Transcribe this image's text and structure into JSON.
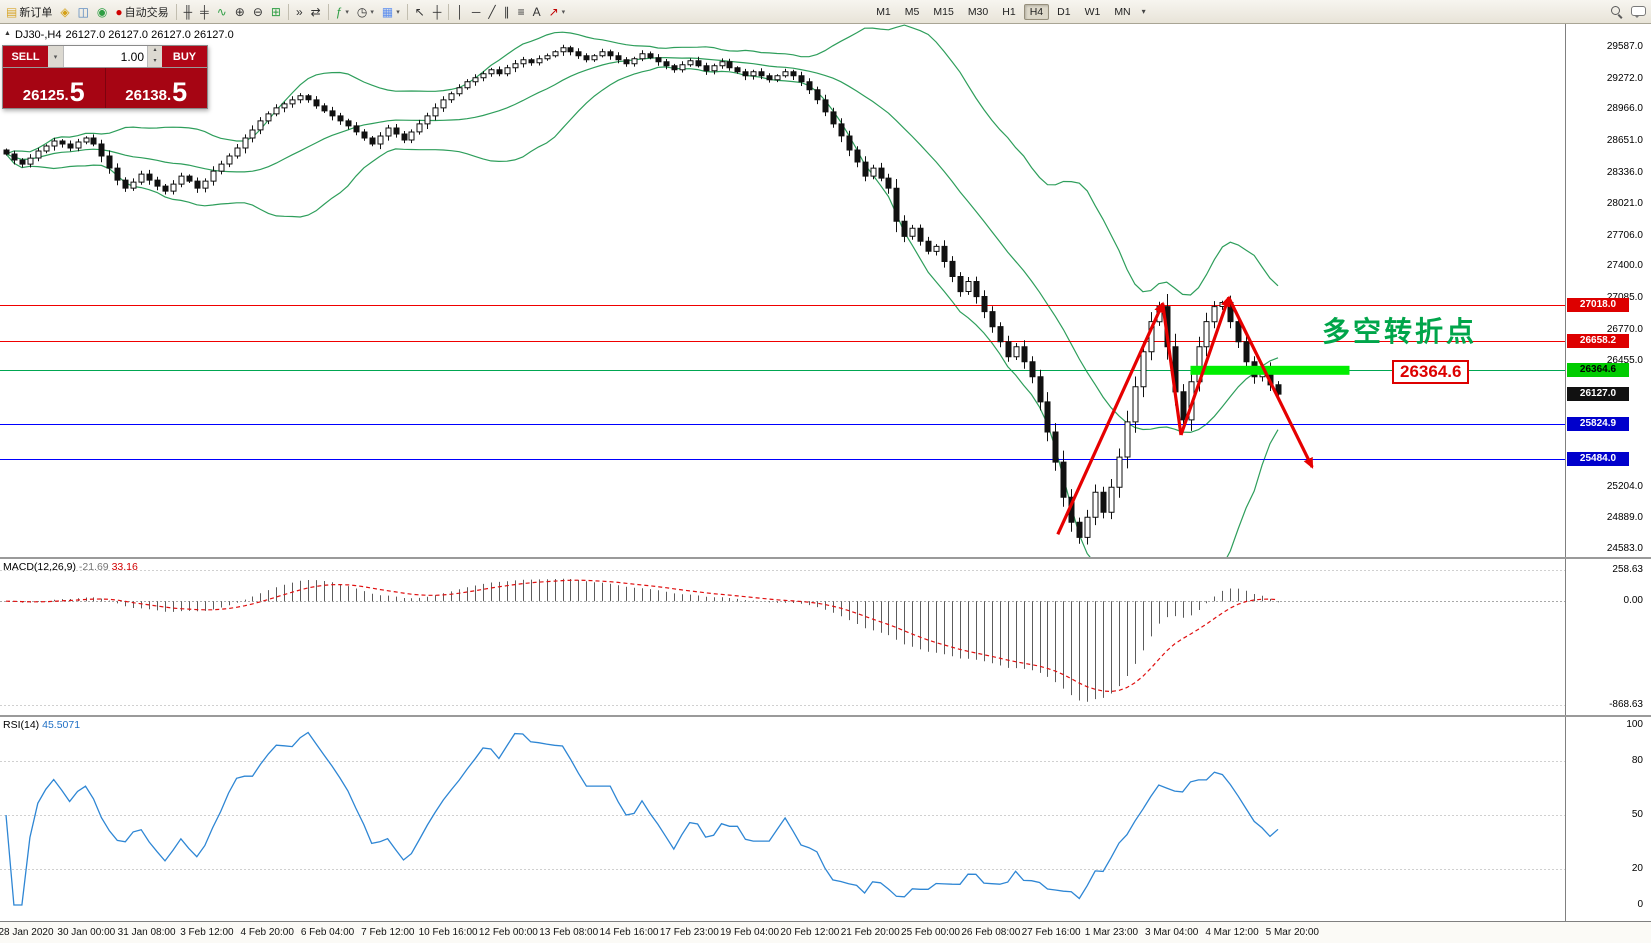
{
  "toolbar": {
    "new_order_label": "新订单",
    "autotrade_label": "自动交易",
    "buttons": [
      {
        "name": "new-order-button",
        "glyph": "▤",
        "glyph_color": "#d8a72e",
        "label": "新订单"
      },
      {
        "name": "chart-profiles-button",
        "glyph": "◈",
        "glyph_color": "#d4a017"
      },
      {
        "name": "market-watch-button",
        "glyph": "◫",
        "glyph_color": "#4a7ebb"
      },
      {
        "name": "community-button",
        "glyph": "◉",
        "glyph_color": "#2f9e44"
      },
      {
        "name": "autotrade-button",
        "glyph": "●",
        "glyph_color": "#d00000",
        "label": "自动交易"
      },
      {
        "sep": true
      },
      {
        "name": "bar-chart-button",
        "glyph": "╫",
        "glyph_color": "#333333"
      },
      {
        "name": "candlestick-chart-button",
        "glyph": "╪",
        "glyph_color": "#333333"
      },
      {
        "name": "line-chart-button",
        "glyph": "∿",
        "glyph_color": "#2f9e44"
      },
      {
        "name": "zoom-in-button",
        "glyph": "⊕",
        "glyph_color": "#333333"
      },
      {
        "name": "zoom-out-button",
        "glyph": "⊖",
        "glyph_color": "#333333"
      },
      {
        "name": "tile-windows-button",
        "glyph": "⊞",
        "glyph_color": "#2f9e44"
      },
      {
        "sep": true
      },
      {
        "name": "auto-scroll-button",
        "glyph": "»",
        "glyph_color": "#333333"
      },
      {
        "name": "chart-shift-button",
        "glyph": "⇄",
        "glyph_color": "#333333"
      },
      {
        "sep": true
      },
      {
        "name": "indicators-button",
        "glyph": "ƒ",
        "glyph_color": "#2f9e44",
        "caret": true
      },
      {
        "name": "periods-button",
        "glyph": "◷",
        "glyph_color": "#333333",
        "caret": true
      },
      {
        "name": "templates-button",
        "glyph": "▦",
        "glyph_color": "#5b8def",
        "caret": true
      },
      {
        "sep": true
      },
      {
        "name": "cursor-button",
        "glyph": "↖",
        "glyph_color": "#333333"
      },
      {
        "name": "crosshair-button",
        "glyph": "┼",
        "glyph_color": "#333333"
      },
      {
        "sep": true
      },
      {
        "name": "vertical-line-button",
        "glyph": "│",
        "glyph_color": "#333333"
      },
      {
        "name": "horizontal-line-button",
        "glyph": "─",
        "glyph_color": "#333333"
      },
      {
        "name": "trendline-button",
        "glyph": "╱",
        "glyph_color": "#333333"
      },
      {
        "name": "channel-button",
        "glyph": "∥",
        "glyph_color": "#333333"
      },
      {
        "name": "fibonacci-button",
        "glyph": "≡",
        "glyph_color": "#333333"
      },
      {
        "name": "text-button",
        "glyph": "A",
        "glyph_color": "#333333"
      },
      {
        "name": "arrows-button",
        "glyph": "↗",
        "glyph_color": "#c00000",
        "caret": true
      }
    ],
    "timeframes": [
      "M1",
      "M5",
      "M15",
      "M30",
      "H1",
      "H4",
      "D1",
      "W1",
      "MN"
    ],
    "active_timeframe": "H4"
  },
  "chart_header": {
    "symbol_info": "DJ30-,H4",
    "ohlc": "26127.0 26127.0 26127.0 26127.0"
  },
  "trade_panel": {
    "sell_label": "SELL",
    "buy_label": "BUY",
    "lot_size": "1.00",
    "sell_price_main": "26125.",
    "sell_price_big": "5",
    "buy_price_main": "26138.",
    "buy_price_big": "5"
  },
  "annotations": {
    "turning_point_text": "多空转折点",
    "price_callout": "26364.6"
  },
  "price_axis": {
    "plain": [
      29587.0,
      29272.0,
      28966.0,
      28651.0,
      28336.0,
      28021.0,
      27706.0,
      27400.0,
      27085.0,
      26770.0,
      26455.0,
      25204.0,
      24889.0,
      24583.0
    ],
    "tags": [
      {
        "text": "27018.0",
        "price": 27018.0,
        "bg": "#dd0000",
        "fg": "#ffffff"
      },
      {
        "text": "26658.2",
        "price": 26658.2,
        "bg": "#dd0000",
        "fg": "#ffffff"
      },
      {
        "text": "26364.6",
        "price": 26364.6,
        "bg": "#00cc00",
        "fg": "#000000"
      },
      {
        "text": "26127.0",
        "price": 26127.0,
        "bg": "#111111",
        "fg": "#ffffff"
      },
      {
        "text": "25824.9",
        "price": 25824.9,
        "bg": "#0000cc",
        "fg": "#ffffff"
      },
      {
        "text": "25484.0",
        "price": 25484.0,
        "bg": "#0000cc",
        "fg": "#ffffff"
      }
    ]
  },
  "indicators": {
    "macd": {
      "label": "MACD(12,26,9)",
      "value_main": "-21.69",
      "value_signal": "33.16",
      "axis": [
        "258.63",
        "0.00",
        "-868.63"
      ],
      "axis_values": [
        258.63,
        0,
        -868.63
      ]
    },
    "rsi": {
      "label": "RSI(14)",
      "value": "45.5071",
      "axis": [
        "100",
        "80",
        "50",
        "20",
        "0"
      ],
      "axis_values": [
        100,
        80,
        50,
        20,
        0
      ],
      "levels": [
        80,
        50,
        20
      ]
    }
  },
  "time_axis": [
    "28 Jan 2020",
    "30 Jan 00:00",
    "31 Jan 08:00",
    "3 Feb 12:00",
    "4 Feb 20:00",
    "6 Feb 04:00",
    "7 Feb 12:00",
    "10 Feb 16:00",
    "12 Feb 00:00",
    "13 Feb 08:00",
    "14 Feb 16:00",
    "17 Feb 23:00",
    "19 Feb 04:00",
    "20 Feb 12:00",
    "21 Feb 20:00",
    "25 Feb 00:00",
    "26 Feb 08:00",
    "27 Feb 16:00",
    "1 Mar 23:00",
    "3 Mar 04:00",
    "4 Mar 12:00",
    "5 Mar 20:00"
  ],
  "chart_data": {
    "type": "candlestick",
    "symbol": "DJ30-",
    "timeframe": "H4",
    "last": 26127.0,
    "price_axis_range": [
      24504,
      29816
    ],
    "open_first": 28560,
    "closes": [
      28520,
      28460,
      28420,
      28480,
      28550,
      28600,
      28650,
      28620,
      28580,
      28640,
      28680,
      28620,
      28500,
      28380,
      28260,
      28180,
      28240,
      28320,
      28260,
      28200,
      28150,
      28220,
      28300,
      28250,
      28180,
      28250,
      28350,
      28420,
      28500,
      28580,
      28680,
      28760,
      28850,
      28920,
      28980,
      29020,
      29060,
      29100,
      29060,
      29000,
      28950,
      28900,
      28850,
      28800,
      28740,
      28680,
      28620,
      28700,
      28780,
      28720,
      28660,
      28740,
      28820,
      28900,
      28980,
      29060,
      29120,
      29180,
      29240,
      29280,
      29320,
      29360,
      29320,
      29380,
      29420,
      29460,
      29430,
      29470,
      29500,
      29540,
      29580,
      29540,
      29500,
      29460,
      29500,
      29540,
      29500,
      29460,
      29420,
      29470,
      29520,
      29480,
      29440,
      29400,
      29360,
      29410,
      29450,
      29400,
      29350,
      29400,
      29440,
      29380,
      29340,
      29300,
      29340,
      29300,
      29260,
      29300,
      29340,
      29300,
      29240,
      29160,
      29060,
      28940,
      28820,
      28700,
      28560,
      28440,
      28300,
      28380,
      28280,
      28180,
      27850,
      27700,
      27780,
      27650,
      27550,
      27600,
      27450,
      27300,
      27150,
      27250,
      27100,
      26950,
      26800,
      26650,
      26500,
      26600,
      26450,
      26300,
      26050,
      25750,
      25450,
      25100,
      24850,
      24700,
      24900,
      25150,
      24950,
      25200,
      25500,
      25850,
      26200,
      26550,
      26850,
      27000,
      26600,
      26150,
      25870,
      26250,
      26600,
      26850,
      27000,
      27040,
      26850,
      26650,
      26450,
      26300,
      26380,
      26220,
      26127
    ],
    "bollinger": {
      "period": 20,
      "deviation": 2,
      "color": "#2e9e5b"
    },
    "hlines": [
      {
        "price": 27018.0,
        "color": "#f00000"
      },
      {
        "price": 26658.2,
        "color": "#f00000"
      },
      {
        "price": 26364.6,
        "color": "#00a651"
      },
      {
        "price": 25824.9,
        "color": "#0000ff"
      },
      {
        "price": 25484.0,
        "color": "#0000ff"
      }
    ],
    "highlight_bar": {
      "bar_start": 149,
      "bar_end": 169,
      "price": 26364.6,
      "color": "#00ee00"
    },
    "trend_arrows": {
      "color": "#e60000",
      "points": [
        [
          132.3,
          24730
        ],
        [
          145.5,
          27030
        ],
        [
          147.8,
          25720
        ],
        [
          153.8,
          27090
        ],
        [
          164.3,
          25400
        ]
      ],
      "heads": [
        true,
        false,
        true,
        true
      ]
    },
    "macd_params": [
      12,
      26,
      9
    ],
    "rsi_period": 14
  }
}
